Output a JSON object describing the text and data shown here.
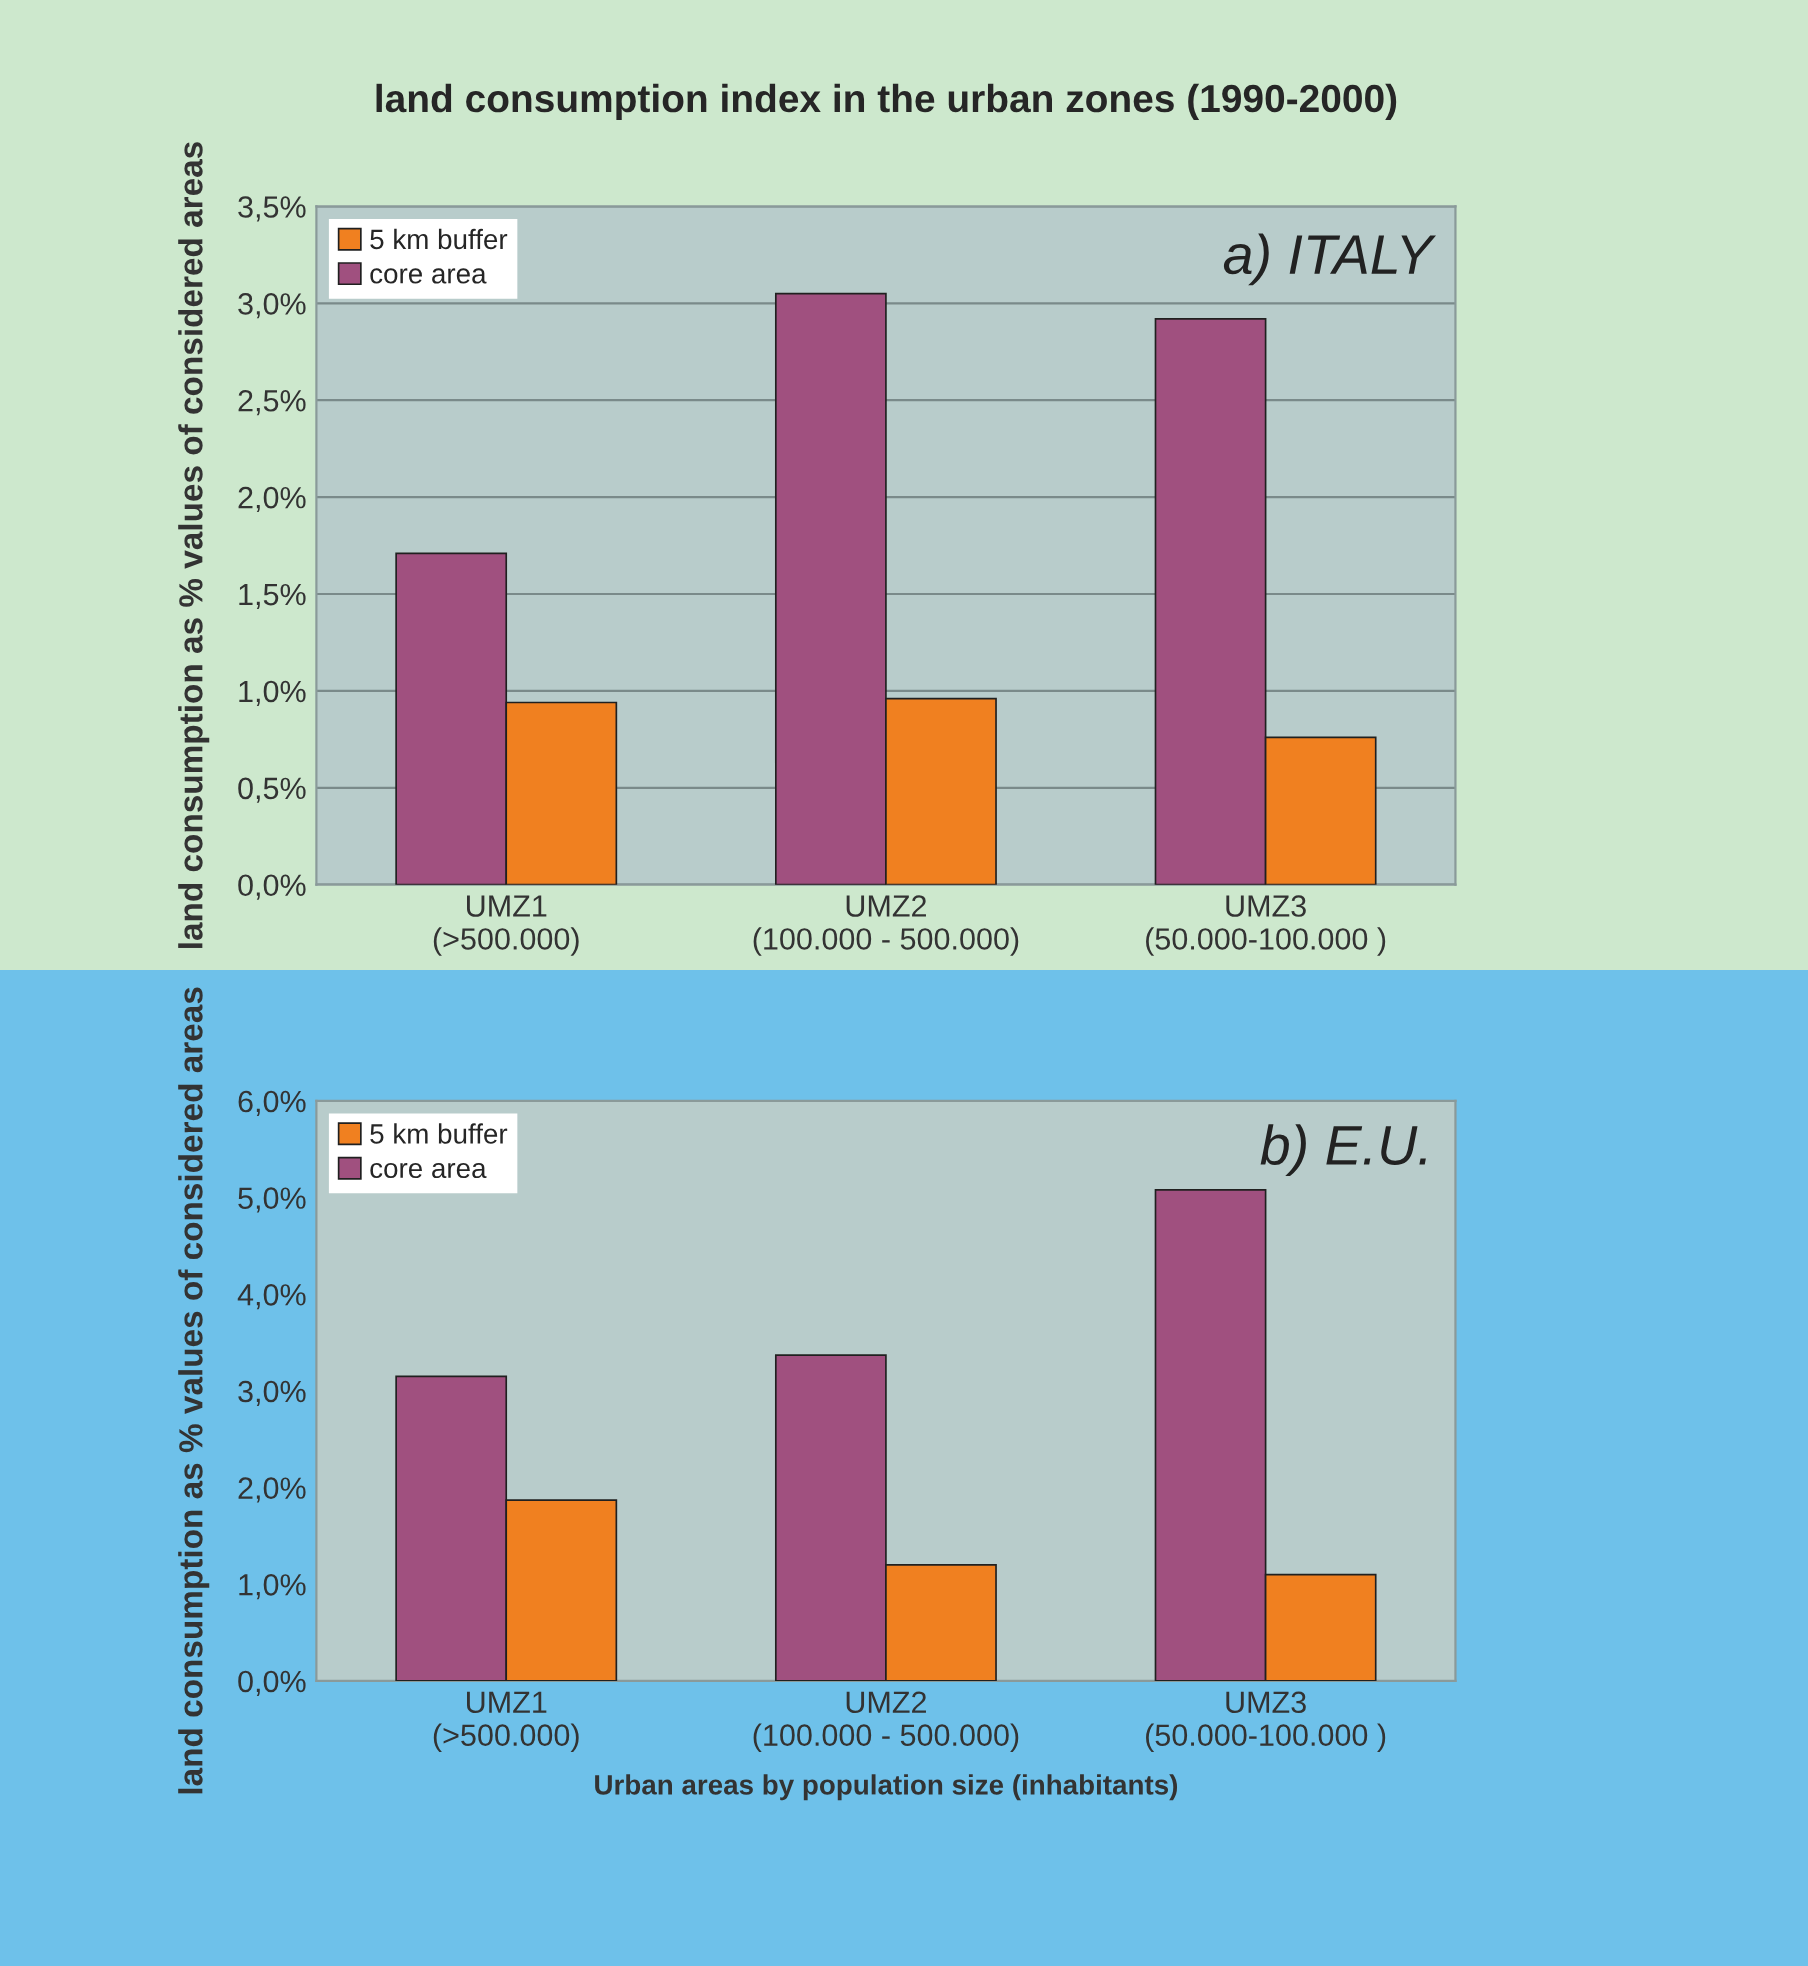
{
  "chart_data": [
    {
      "type": "bar",
      "title": "land consumption index in the urban zones (1990-2000)",
      "ylabel": "land consumption as % values of considered areas",
      "annotations": [
        "a) ITALY"
      ],
      "categories": [
        "UMZ1\n(>500.000)",
        "UMZ2\n(100.000 - 500.000)",
        "UMZ3\n(50.000-100.000 )"
      ],
      "series": [
        {
          "name": "core area",
          "color": "#a0507f",
          "values": [
            1.71,
            3.05,
            2.92
          ]
        },
        {
          "name": "5 km buffer",
          "color": "#f08020",
          "values": [
            0.94,
            0.96,
            0.76
          ]
        }
      ],
      "ylim": [
        0,
        3.5
      ],
      "yticks": [
        {
          "value": 0,
          "label": "0,0%"
        },
        {
          "value": 0.5,
          "label": "0,5%"
        },
        {
          "value": 1,
          "label": "1,0%"
        },
        {
          "value": 1.5,
          "label": "1,5%"
        },
        {
          "value": 2,
          "label": "2,0%"
        },
        {
          "value": 2.5,
          "label": "2,5%"
        },
        {
          "value": 3,
          "label": "3,0%"
        },
        {
          "value": 3.5,
          "label": "3,5%"
        }
      ],
      "grid": "y",
      "legend": "top left"
    },
    {
      "type": "bar",
      "xlabel": "Urban areas by population size (inhabitants)",
      "ylabel": "land consumption as % values of considered areas",
      "annotations": [
        "b) E.U."
      ],
      "categories": [
        "UMZ1\n(>500.000)",
        "UMZ2\n(100.000 - 500.000)",
        "UMZ3\n(50.000-100.000 )"
      ],
      "series": [
        {
          "name": "core area",
          "color": "#a0507f",
          "values": [
            3.15,
            3.37,
            5.08
          ]
        },
        {
          "name": "5 km buffer",
          "color": "#f08020",
          "values": [
            1.87,
            1.2,
            1.1
          ]
        }
      ],
      "ylim": [
        0,
        6
      ],
      "yticks": [
        {
          "value": 0,
          "label": "0,0%"
        },
        {
          "value": 1,
          "label": "1,0%"
        },
        {
          "value": 2,
          "label": "2,0%"
        },
        {
          "value": 3,
          "label": "3,0%"
        },
        {
          "value": 4,
          "label": "4,0%"
        },
        {
          "value": 5,
          "label": "5,0%"
        },
        {
          "value": 6,
          "label": "6,0%"
        }
      ],
      "legend": "top left"
    }
  ]
}
